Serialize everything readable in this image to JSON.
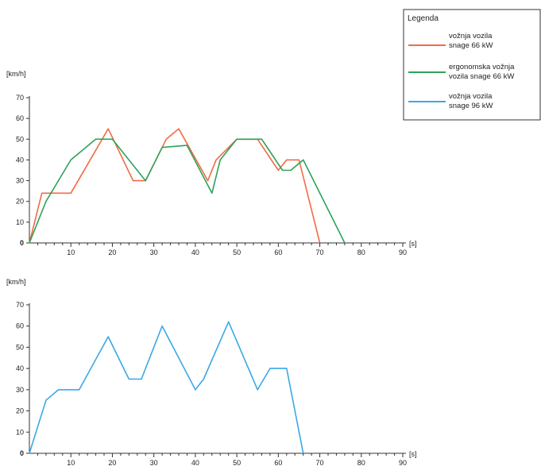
{
  "legend": {
    "title": "Legenda",
    "entries": [
      {
        "lines": [
          "vožnja vozila",
          "snage 66 kW"
        ],
        "color": "#f26b45"
      },
      {
        "lines": [
          "ergonomska vožnja",
          "vozila snage 66 kW"
        ],
        "color": "#2ea25a"
      },
      {
        "lines": [
          "vožnja vozila",
          "snage 96 kW"
        ],
        "color": "#3aa8e6"
      }
    ]
  },
  "chart_data": [
    {
      "type": "line",
      "y_unit": "[km/h]",
      "x_unit": "[s]",
      "xlim": [
        0,
        90
      ],
      "ylim": [
        0,
        70
      ],
      "x_ticks": [
        "10",
        "20",
        "30",
        "40",
        "50",
        "60",
        "70",
        "80",
        "90"
      ],
      "y_ticks": [
        "0",
        "10",
        "20",
        "30",
        "40",
        "50",
        "60",
        "70"
      ],
      "grid": false,
      "series": [
        {
          "name": "vožnja vozila snage 66 kW",
          "color": "#f26b45",
          "points": [
            [
              0,
              0
            ],
            [
              3,
              24
            ],
            [
              10,
              24
            ],
            [
              19,
              55
            ],
            [
              25,
              30
            ],
            [
              28,
              30
            ],
            [
              33,
              50
            ],
            [
              36,
              55
            ],
            [
              43,
              30
            ],
            [
              45,
              40
            ],
            [
              50,
              50
            ],
            [
              55,
              50
            ],
            [
              60,
              35
            ],
            [
              62,
              40
            ],
            [
              65,
              40
            ],
            [
              70,
              0
            ]
          ]
        },
        {
          "name": "ergonomska vožnja vozila snage 66 kW",
          "color": "#2ea25a",
          "points": [
            [
              0,
              0
            ],
            [
              4,
              20
            ],
            [
              10,
              40
            ],
            [
              16,
              50
            ],
            [
              20,
              50
            ],
            [
              28,
              30
            ],
            [
              32,
              46
            ],
            [
              38,
              47
            ],
            [
              44,
              24
            ],
            [
              46,
              40
            ],
            [
              50,
              50
            ],
            [
              56,
              50
            ],
            [
              61,
              35
            ],
            [
              63,
              35
            ],
            [
              66,
              40
            ],
            [
              76,
              0
            ]
          ]
        }
      ]
    },
    {
      "type": "line",
      "y_unit": "[km/h]",
      "x_unit": "[s]",
      "xlim": [
        0,
        90
      ],
      "ylim": [
        0,
        70
      ],
      "x_ticks": [
        "10",
        "20",
        "30",
        "40",
        "50",
        "60",
        "70",
        "80",
        "90"
      ],
      "y_ticks": [
        "0",
        "10",
        "20",
        "30",
        "40",
        "50",
        "60",
        "70"
      ],
      "grid": false,
      "series": [
        {
          "name": "vožnja vozila snage 96 kW",
          "color": "#3aa8e6",
          "points": [
            [
              0,
              0
            ],
            [
              4,
              25
            ],
            [
              7,
              30
            ],
            [
              12,
              30
            ],
            [
              19,
              55
            ],
            [
              24,
              35
            ],
            [
              27,
              35
            ],
            [
              32,
              60
            ],
            [
              40,
              30
            ],
            [
              42,
              35
            ],
            [
              48,
              62
            ],
            [
              55,
              30
            ],
            [
              58,
              40
            ],
            [
              62,
              40
            ],
            [
              66,
              0
            ]
          ]
        }
      ]
    }
  ]
}
